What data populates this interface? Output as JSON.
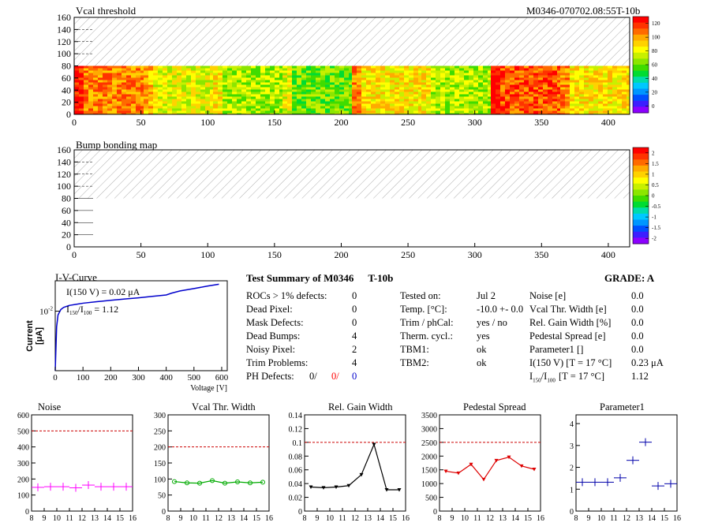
{
  "header": {
    "title_left": "Vcal threshold",
    "title_right": "M0346-070702.08:55T-10b"
  },
  "map2_title": "Bump bonding map",
  "maps": {
    "x_ticks": [
      0,
      50,
      100,
      150,
      200,
      250,
      300,
      350,
      400
    ],
    "y_ticks": [
      0,
      20,
      40,
      60,
      80,
      100,
      120,
      140,
      160
    ],
    "xlim": [
      0,
      416
    ],
    "ylim": [
      0,
      160
    ],
    "data_rows": [
      0,
      80
    ],
    "empty_rows": [
      80,
      160
    ],
    "roc_boundaries": [
      52,
      104,
      156,
      208,
      260,
      312,
      364
    ],
    "palette_scale1": [
      "#ff0000",
      "#ff3300",
      "#ff6a00",
      "#ffaa00",
      "#ffd200",
      "#ffff00",
      "#c8f000",
      "#8ce600",
      "#40dc00",
      "#00dc32",
      "#00dcaa",
      "#00c8ff",
      "#0096ff",
      "#0050ff",
      "#3c1eff",
      "#8c00ff"
    ]
  },
  "scale1": {
    "ticks": [
      "0",
      "20",
      "40",
      "60",
      "80",
      "100",
      "120"
    ]
  },
  "scale2": {
    "ticks": [
      "-2",
      "-1.5",
      "-1",
      "-0.5",
      "0",
      "0.5",
      "1",
      "1.5",
      "2"
    ]
  },
  "iv": {
    "title": "I-V-Curve",
    "ylabel": "Current [μA]",
    "xlabel": "Voltage [V]",
    "ytick": "10",
    "ytick_exp": "-2",
    "x_ticks": [
      0,
      100,
      200,
      300,
      400,
      500,
      600
    ],
    "text1": "I(150 V) = 0.02 μA",
    "text2": "= 1.12",
    "chart_data": {
      "type": "line",
      "x": [
        0,
        5,
        10,
        20,
        30,
        50,
        75,
        100,
        150,
        200,
        250,
        300,
        350,
        400,
        420,
        450,
        500,
        550,
        590
      ],
      "y": [
        0.0003,
        0.004,
        0.008,
        0.011,
        0.0125,
        0.014,
        0.015,
        0.016,
        0.0175,
        0.019,
        0.0205,
        0.022,
        0.024,
        0.026,
        0.029,
        0.033,
        0.038,
        0.044,
        0.049
      ],
      "xlim": [
        0,
        620
      ]
    }
  },
  "summary": {
    "title": "Test Summary of M0346",
    "temp": "T-10b",
    "grade": "GRADE:  A",
    "left_rows": [
      {
        "label": "ROCs > 1% defects:",
        "value": "0"
      },
      {
        "label": "Dead Pixel:",
        "value": "0"
      },
      {
        "label": "Mask Defects:",
        "value": "0"
      },
      {
        "label": "Dead Bumps:",
        "value": "4"
      },
      {
        "label": "Noisy Pixel:",
        "value": "2"
      },
      {
        "label": "Trim Problems:",
        "value": "4"
      }
    ],
    "ph_label": "PH Defects:",
    "ph_values": [
      "0/",
      "0/",
      "0"
    ],
    "ph_colors": [
      "#000000",
      "#ff0000",
      "#0000cc"
    ],
    "mid_rows": [
      {
        "label": "Tested on:",
        "value": "Jul 2"
      },
      {
        "label": "Temp. [°C]:",
        "value": "-10.0 +- 0.0"
      },
      {
        "label": "Trim / phCal:",
        "value": "yes / no"
      },
      {
        "label": "Therm. cycl.:",
        "value": "yes"
      },
      {
        "label": "TBM1:",
        "value": "ok"
      },
      {
        "label": "TBM2:",
        "value": "ok"
      }
    ],
    "right_rows": [
      {
        "label": "Noise [e]",
        "value": "0.0"
      },
      {
        "label": "Vcal Thr. Width [e]",
        "value": "0.0"
      },
      {
        "label": "Rel. Gain Width [%]",
        "value": "0.0"
      },
      {
        "label": "Pedestal Spread [e]",
        "value": "0.0"
      },
      {
        "label": "Parameter1 []",
        "value": "0.0"
      },
      {
        "label": "I(150 V) [T = 17 °C]",
        "value": "0.23 μA"
      }
    ],
    "ratio_bracket": "[T = 17 °C]",
    "ratio_value": "1.12"
  },
  "small_plots": [
    {
      "title": "Noise",
      "color": "#ff00ff",
      "marker": "cross",
      "ylim": [
        0,
        600
      ],
      "y_ticks": [
        "0",
        "100",
        "200",
        "300",
        "400",
        "500",
        "600"
      ],
      "threshold": 500,
      "chart_data": {
        "type": "scatter",
        "x": [
          8.5,
          9.5,
          10.5,
          11.5,
          12.5,
          13.5,
          14.5,
          15.5
        ],
        "y": [
          148,
          152,
          152,
          145,
          162,
          152,
          152,
          152
        ]
      }
    },
    {
      "title": "Vcal Thr. Width",
      "color": "#00aa00",
      "marker": "circle",
      "ylim": [
        0,
        300
      ],
      "y_ticks": [
        "0",
        "50",
        "100",
        "150",
        "200",
        "250",
        "300"
      ],
      "threshold": 200,
      "chart_data": {
        "type": "line",
        "x": [
          8.5,
          9.5,
          10.5,
          11.5,
          12.5,
          13.5,
          14.5,
          15.5
        ],
        "y": [
          92,
          88,
          87,
          95,
          87,
          91,
          88,
          90
        ]
      }
    },
    {
      "title": "Rel. Gain Width",
      "color": "#000000",
      "marker": "triangle",
      "ylim": [
        0,
        0.14
      ],
      "y_ticks": [
        "0",
        "0.02",
        "0.04",
        "0.06",
        "0.08",
        "0.1",
        "0.12",
        "0.14"
      ],
      "threshold": 0.1,
      "chart_data": {
        "type": "line",
        "x": [
          8.5,
          9.5,
          10.5,
          11.5,
          12.5,
          13.5,
          14.5,
          15.5
        ],
        "y": [
          0.035,
          0.034,
          0.035,
          0.037,
          0.053,
          0.097,
          0.031,
          0.031
        ]
      }
    },
    {
      "title": "Pedestal Spread",
      "color": "#dd0000",
      "marker": "triangle",
      "ylim": [
        0,
        3500
      ],
      "y_ticks": [
        "0",
        "500",
        "1000",
        "1500",
        "2000",
        "2500",
        "3000",
        "3500"
      ],
      "threshold": 2500,
      "chart_data": {
        "type": "line",
        "x": [
          8.5,
          9.5,
          10.5,
          11.5,
          12.5,
          13.5,
          14.5,
          15.5
        ],
        "y": [
          1450,
          1380,
          1700,
          1150,
          1840,
          1960,
          1640,
          1520
        ]
      }
    },
    {
      "title": "Parameter1",
      "color": "#0000aa",
      "marker": "cross",
      "ylim": [
        0,
        4.4
      ],
      "y_ticks": [
        "0",
        "1",
        "2",
        "3",
        "4"
      ],
      "threshold": null,
      "chart_data": {
        "type": "scatter",
        "x": [
          8.5,
          9.5,
          10.5,
          11.5,
          12.5,
          13.5,
          14.5,
          15.5
        ],
        "y": [
          1.32,
          1.32,
          1.32,
          1.52,
          2.32,
          3.15,
          1.15,
          1.25
        ]
      }
    }
  ],
  "small_x_ticks": [
    "8",
    "9",
    "10",
    "11",
    "12",
    "13",
    "14",
    "15",
    "16"
  ]
}
